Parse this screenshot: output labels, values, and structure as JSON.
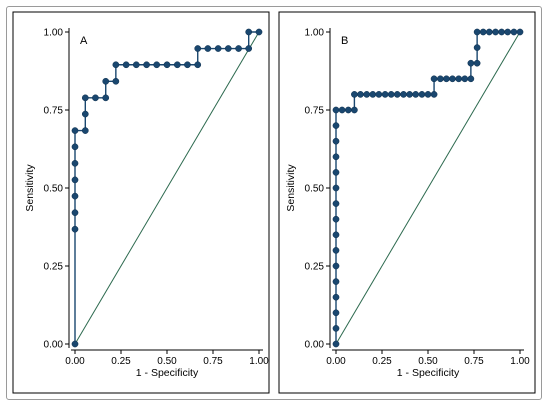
{
  "chart_data": [
    {
      "type": "line",
      "panel_label": "A",
      "xlabel": "1 - Specificity",
      "ylabel": "Sensitivity",
      "xlim": [
        0,
        1
      ],
      "ylim": [
        0,
        1
      ],
      "xticks": [
        "0.00",
        "0.25",
        "0.50",
        "0.75",
        "1.00"
      ],
      "yticks": [
        "0.00",
        "0.25",
        "0.50",
        "0.75",
        "1.00"
      ],
      "line_color": "#1a476f",
      "reference_line_color": "#2d6a4f",
      "grid": false,
      "series": [
        {
          "x": [
            0,
            0,
            0,
            0,
            0,
            0,
            0,
            0,
            0.056,
            0.056,
            0.056,
            0.111,
            0.167,
            0.167,
            0.222,
            0.222,
            0.278,
            0.333,
            0.389,
            0.444,
            0.5,
            0.556,
            0.611,
            0.667,
            0.667,
            0.722,
            0.778,
            0.833,
            0.889,
            0.944,
            0.944,
            1.0
          ],
          "y": [
            0,
            0.368,
            0.421,
            0.474,
            0.526,
            0.579,
            0.632,
            0.684,
            0.684,
            0.737,
            0.789,
            0.789,
            0.789,
            0.842,
            0.842,
            0.895,
            0.895,
            0.895,
            0.895,
            0.895,
            0.895,
            0.895,
            0.895,
            0.895,
            0.947,
            0.947,
            0.947,
            0.947,
            0.947,
            0.947,
            1.0,
            1.0
          ]
        }
      ],
      "reference": {
        "x": [
          0,
          1
        ],
        "y": [
          0,
          1
        ]
      }
    },
    {
      "type": "line",
      "panel_label": "B",
      "xlabel": "1 - Specificity",
      "ylabel": "Sensitivity",
      "xlim": [
        0,
        1
      ],
      "ylim": [
        0,
        1
      ],
      "xticks": [
        "0.00",
        "0.25",
        "0.50",
        "0.75",
        "1.00"
      ],
      "yticks": [
        "0.00",
        "0.25",
        "0.50",
        "0.75",
        "1.00"
      ],
      "line_color": "#1a476f",
      "reference_line_color": "#2d6a4f",
      "grid": false,
      "series": [
        {
          "x": [
            0,
            0,
            0,
            0,
            0,
            0,
            0,
            0,
            0,
            0,
            0,
            0,
            0,
            0,
            0,
            0,
            0.033,
            0.067,
            0.1,
            0.1,
            0.133,
            0.167,
            0.2,
            0.233,
            0.267,
            0.3,
            0.333,
            0.367,
            0.4,
            0.433,
            0.467,
            0.5,
            0.533,
            0.533,
            0.567,
            0.6,
            0.633,
            0.667,
            0.7,
            0.733,
            0.733,
            0.767,
            0.767,
            0.767,
            0.8,
            0.833,
            0.867,
            0.9,
            0.933,
            0.967,
            1.0
          ],
          "y": [
            0,
            0.05,
            0.1,
            0.15,
            0.2,
            0.25,
            0.3,
            0.35,
            0.4,
            0.45,
            0.5,
            0.55,
            0.6,
            0.65,
            0.7,
            0.75,
            0.75,
            0.75,
            0.75,
            0.8,
            0.8,
            0.8,
            0.8,
            0.8,
            0.8,
            0.8,
            0.8,
            0.8,
            0.8,
            0.8,
            0.8,
            0.8,
            0.8,
            0.85,
            0.85,
            0.85,
            0.85,
            0.85,
            0.85,
            0.85,
            0.9,
            0.9,
            0.95,
            1.0,
            1.0,
            1.0,
            1.0,
            1.0,
            1.0,
            1.0,
            1.0
          ]
        }
      ],
      "reference": {
        "x": [
          0,
          1
        ],
        "y": [
          0,
          1
        ]
      }
    }
  ]
}
